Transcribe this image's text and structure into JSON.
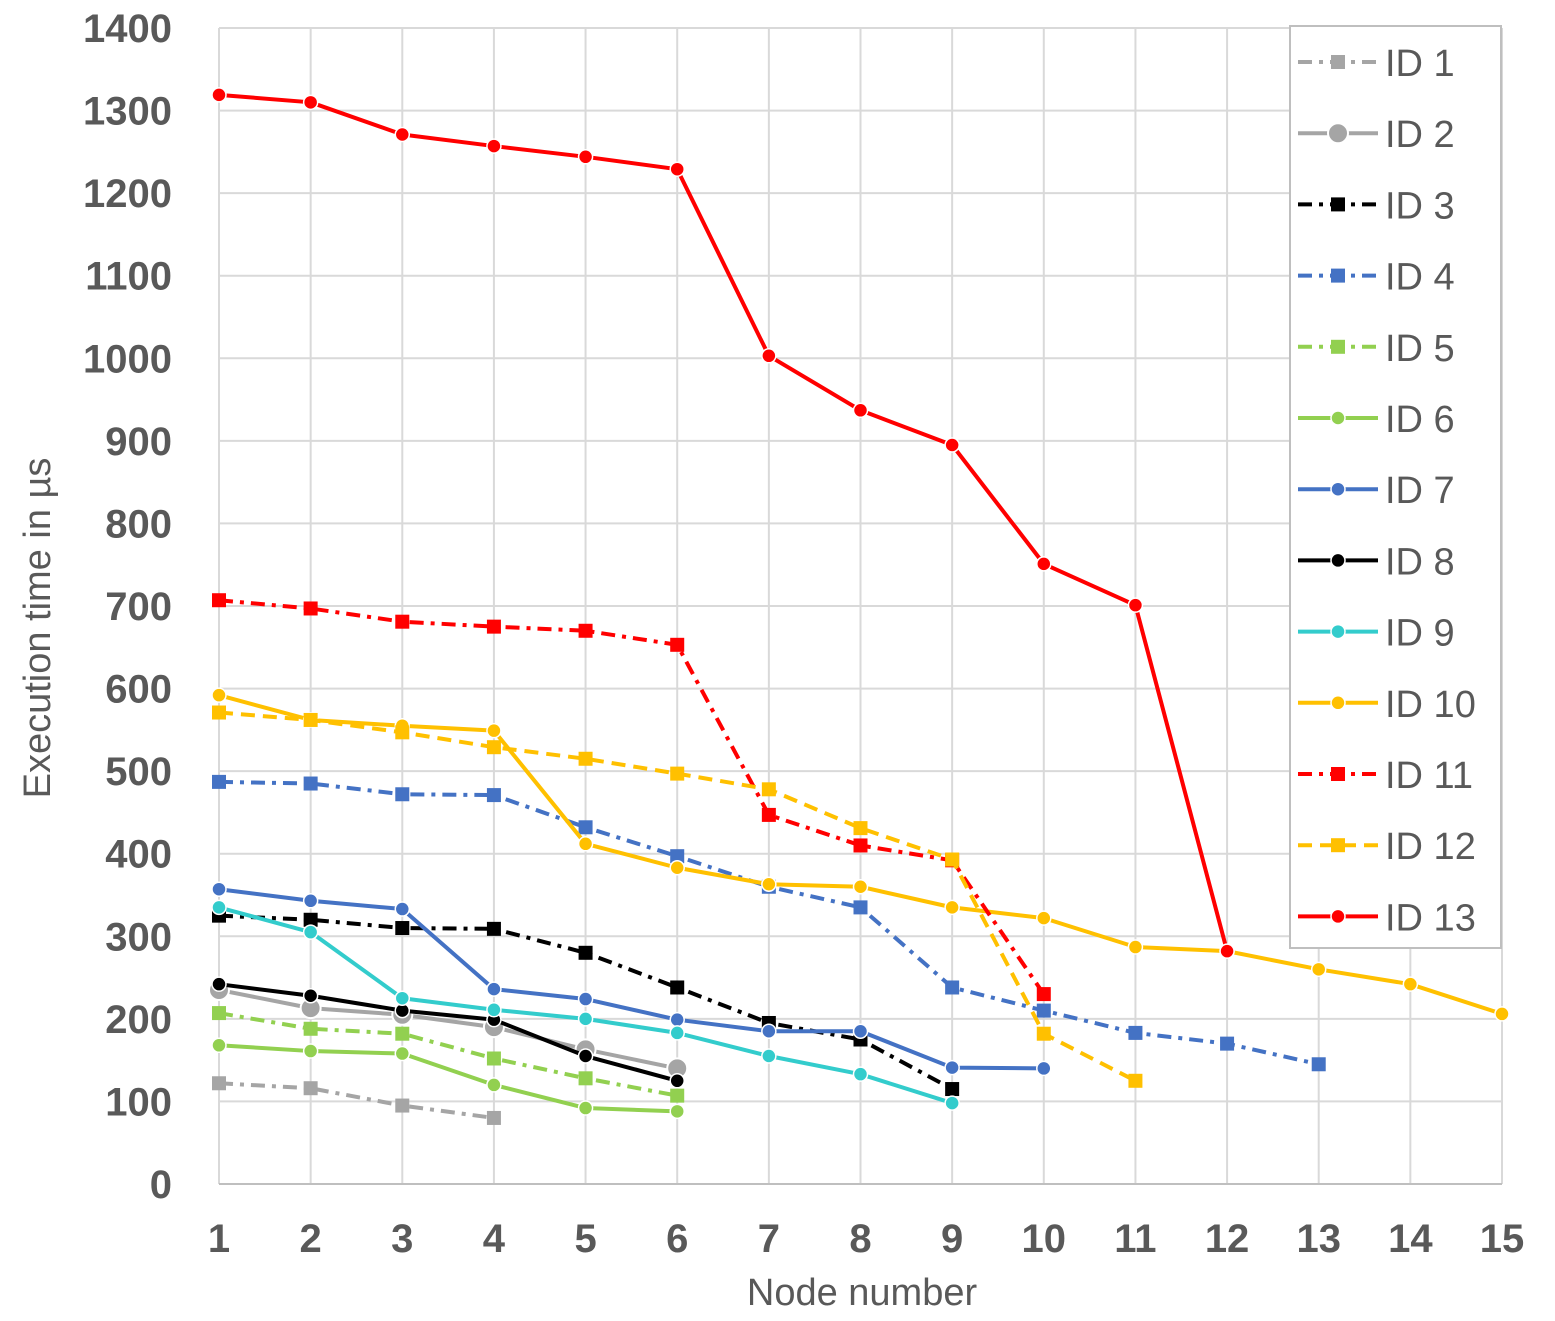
{
  "chart_data": {
    "type": "line",
    "xlabel": "Node number",
    "ylabel": "Execution time in µs",
    "xlim": [
      1,
      15
    ],
    "ylim": [
      0,
      1400
    ],
    "x_ticks": [
      1,
      2,
      3,
      4,
      5,
      6,
      7,
      8,
      9,
      10,
      11,
      12,
      13,
      14,
      15
    ],
    "y_ticks": [
      0,
      100,
      200,
      300,
      400,
      500,
      600,
      700,
      800,
      900,
      1000,
      1100,
      1200,
      1300,
      1400
    ],
    "grid": true,
    "legend_position": "top-right",
    "series": [
      {
        "name": "ID 1",
        "color": "#A5A5A5",
        "line": "dashdot",
        "marker": "square",
        "x": [
          1,
          2,
          3,
          4
        ],
        "values": [
          122,
          116,
          95,
          80
        ]
      },
      {
        "name": "ID 2",
        "color": "#A5A5A5",
        "line": "solid",
        "marker": "circle-large",
        "x": [
          1,
          2,
          3,
          4,
          5,
          6
        ],
        "values": [
          235,
          213,
          205,
          190,
          163,
          140
        ]
      },
      {
        "name": "ID 3",
        "color": "#000000",
        "line": "dashdot",
        "marker": "square",
        "x": [
          1,
          2,
          3,
          4,
          5,
          6,
          7,
          8,
          9
        ],
        "values": [
          325,
          320,
          310,
          309,
          280,
          238,
          195,
          175,
          115
        ]
      },
      {
        "name": "ID 4",
        "color": "#4472C4",
        "line": "dashdot",
        "marker": "square",
        "x": [
          1,
          2,
          3,
          4,
          5,
          6,
          7,
          8,
          9,
          10,
          11,
          12,
          13
        ],
        "values": [
          487,
          485,
          472,
          471,
          432,
          397,
          360,
          335,
          238,
          210,
          183,
          170,
          145
        ]
      },
      {
        "name": "ID 5",
        "color": "#92D050",
        "line": "dashdot",
        "marker": "square",
        "x": [
          1,
          2,
          3,
          4,
          5,
          6
        ],
        "values": [
          207,
          188,
          182,
          152,
          128,
          107
        ]
      },
      {
        "name": "ID 6",
        "color": "#92D050",
        "line": "solid",
        "marker": "circle",
        "x": [
          1,
          2,
          3,
          4,
          5,
          6
        ],
        "values": [
          168,
          161,
          158,
          120,
          92,
          88
        ]
      },
      {
        "name": "ID 7",
        "color": "#4472C4",
        "line": "solid",
        "marker": "circle",
        "x": [
          1,
          2,
          3,
          4,
          5,
          6,
          7,
          8,
          9,
          10
        ],
        "values": [
          357,
          343,
          333,
          236,
          224,
          199,
          185,
          185,
          141,
          140
        ]
      },
      {
        "name": "ID 8",
        "color": "#000000",
        "line": "solid",
        "marker": "circle",
        "x": [
          1,
          2,
          3,
          4,
          5,
          6
        ],
        "values": [
          242,
          228,
          210,
          199,
          155,
          125
        ]
      },
      {
        "name": "ID 9",
        "color": "#33CCCC",
        "line": "solid",
        "marker": "circle",
        "x": [
          1,
          2,
          3,
          4,
          5,
          6,
          7,
          8,
          9
        ],
        "values": [
          335,
          305,
          225,
          211,
          200,
          183,
          155,
          133,
          98
        ]
      },
      {
        "name": "ID 10",
        "color": "#FFC000",
        "line": "solid",
        "marker": "circle",
        "x": [
          1,
          2,
          3,
          4,
          5,
          6,
          7,
          8,
          9,
          10,
          11,
          12,
          13,
          14,
          15
        ],
        "values": [
          592,
          562,
          555,
          549,
          412,
          383,
          363,
          360,
          335,
          322,
          287,
          282,
          260,
          242,
          206
        ]
      },
      {
        "name": "ID 11",
        "color": "#FF0000",
        "line": "dashdot",
        "marker": "square",
        "x": [
          1,
          2,
          3,
          4,
          5,
          6,
          7,
          8,
          9,
          10
        ],
        "values": [
          707,
          697,
          681,
          675,
          670,
          653,
          447,
          410,
          392,
          230
        ]
      },
      {
        "name": "ID 12",
        "color": "#FFC000",
        "line": "dashed",
        "marker": "square",
        "x": [
          1,
          2,
          3,
          4,
          5,
          6,
          7,
          8,
          9,
          10,
          11
        ],
        "values": [
          571,
          562,
          547,
          529,
          515,
          497,
          478,
          431,
          393,
          182,
          125
        ]
      },
      {
        "name": "ID 13",
        "color": "#FF0000",
        "line": "solid",
        "marker": "circle",
        "x": [
          1,
          2,
          3,
          4,
          5,
          6,
          7,
          8,
          9,
          10,
          11,
          12
        ],
        "values": [
          1319,
          1310,
          1271,
          1257,
          1244,
          1229,
          1003,
          937,
          895,
          751,
          701,
          282
        ]
      }
    ]
  }
}
